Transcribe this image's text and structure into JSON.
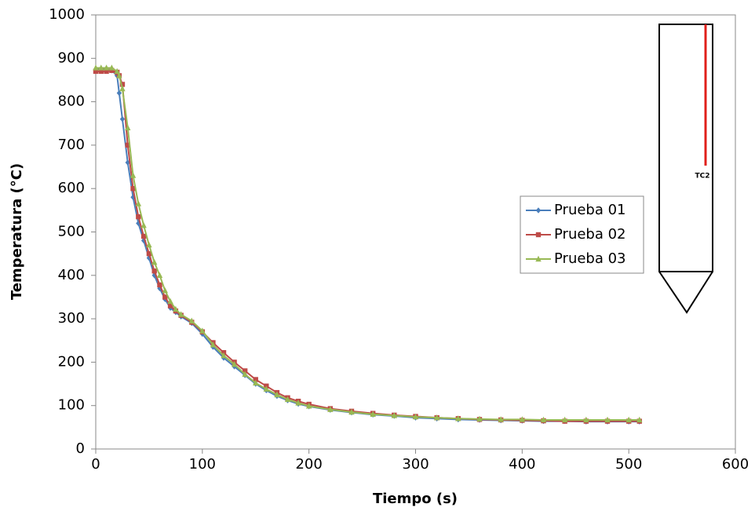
{
  "chart_data": {
    "type": "line",
    "x_label": "Tiempo (s)",
    "y_label": "Temperatura (°C)",
    "annotation": "TC2",
    "xlim": [
      0,
      600
    ],
    "xticks": [
      0,
      100,
      200,
      300,
      400,
      500,
      600
    ],
    "ylim": [
      0,
      1000
    ],
    "yticks": [
      0,
      100,
      200,
      300,
      400,
      500,
      600,
      700,
      800,
      900,
      1000
    ],
    "grid": false,
    "legend": "right",
    "x": [
      0,
      5,
      10,
      15,
      20,
      22,
      25,
      30,
      35,
      40,
      45,
      50,
      55,
      60,
      65,
      70,
      75,
      80,
      90,
      100,
      110,
      120,
      130,
      140,
      150,
      160,
      170,
      180,
      190,
      200,
      220,
      240,
      260,
      280,
      300,
      320,
      340,
      360,
      380,
      400,
      420,
      440,
      460,
      480,
      500,
      510
    ],
    "series": [
      {
        "name": "Prueba 01",
        "color": "#4a7ebb",
        "marker": "diamond",
        "values": [
          875,
          875,
          875,
          872,
          860,
          820,
          760,
          660,
          580,
          520,
          480,
          440,
          400,
          370,
          345,
          325,
          315,
          305,
          290,
          265,
          235,
          210,
          190,
          170,
          150,
          135,
          122,
          112,
          104,
          98,
          90,
          84,
          79,
          76,
          72,
          70,
          68,
          67,
          66,
          65,
          64,
          64,
          63,
          63,
          63,
          63
        ]
      },
      {
        "name": "Prueba 02",
        "color": "#be4b48",
        "marker": "square",
        "values": [
          870,
          870,
          870,
          872,
          868,
          860,
          840,
          700,
          600,
          535,
          490,
          450,
          410,
          378,
          350,
          330,
          318,
          308,
          292,
          270,
          245,
          222,
          200,
          180,
          160,
          145,
          130,
          118,
          110,
          103,
          93,
          87,
          82,
          78,
          75,
          72,
          70,
          68,
          67,
          66,
          65,
          64,
          64,
          64,
          64,
          64
        ]
      },
      {
        "name": "Prueba 03",
        "color": "#98b954",
        "marker": "triangle",
        "values": [
          878,
          878,
          878,
          878,
          870,
          860,
          830,
          740,
          630,
          565,
          515,
          470,
          430,
          400,
          365,
          340,
          322,
          310,
          295,
          272,
          240,
          215,
          195,
          172,
          152,
          138,
          125,
          114,
          106,
          99,
          91,
          85,
          80,
          77,
          74,
          72,
          70,
          69,
          68,
          68,
          67,
          67,
          67,
          67,
          67,
          67
        ]
      }
    ]
  }
}
